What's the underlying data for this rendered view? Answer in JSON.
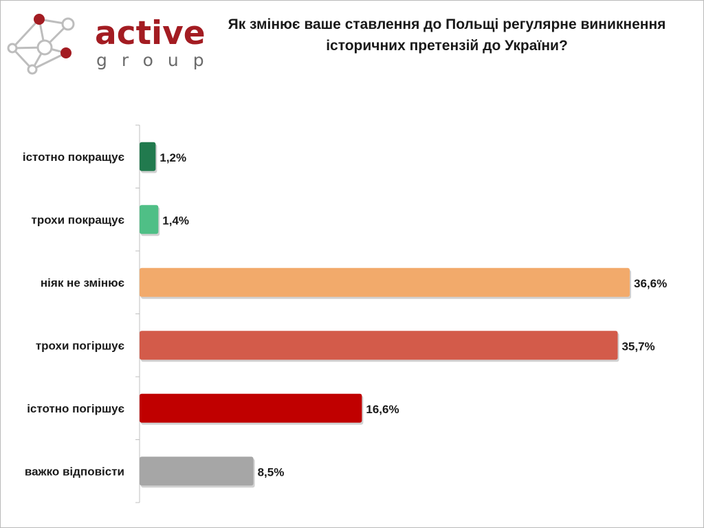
{
  "logo": {
    "name_top": "active",
    "name_bottom": "group"
  },
  "chart_data": {
    "type": "bar",
    "orientation": "horizontal",
    "title": "Як змінює ваше ставлення до Польщі регулярне виникнення історичних претензій до України?",
    "xlabel": "",
    "ylabel": "",
    "unit": "%",
    "xlim": [
      0,
      40
    ],
    "grid": false,
    "legend": "none",
    "categories": [
      "істотно покращує",
      "трохи покращує",
      "ніяк не змінює",
      "трохи погіршує",
      "істотно погіршує",
      "важко відповісти"
    ],
    "values": [
      1.2,
      1.4,
      36.6,
      35.7,
      16.6,
      8.5
    ],
    "data_labels": [
      "1,2%",
      "1,4%",
      "36,6%",
      "35,7%",
      "16,6%",
      "8,5%"
    ],
    "colors": [
      "#217a4e",
      "#4fbf86",
      "#f2aa6b",
      "#d35b4a",
      "#c00000",
      "#a6a6a6"
    ]
  }
}
